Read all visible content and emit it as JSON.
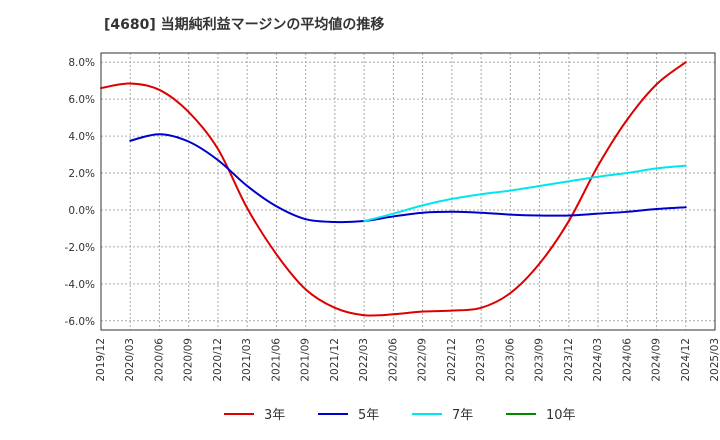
{
  "chart_data": {
    "type": "line",
    "title": "[4680]  当期純利益マージンの平均値の推移",
    "xlabel": "",
    "ylabel": "",
    "ylim": [
      -6.5,
      8.5
    ],
    "yticks": [
      8.0,
      6.0,
      4.0,
      2.0,
      0.0,
      -2.0,
      -4.0,
      -6.0
    ],
    "ytick_labels": [
      "8.0%",
      "6.0%",
      "4.0%",
      "2.0%",
      "0.0%",
      "-2.0%",
      "-4.0%",
      "-6.0%"
    ],
    "x_ticks": [
      "2019/12",
      "2020/03",
      "2020/06",
      "2020/09",
      "2020/12",
      "2021/03",
      "2021/06",
      "2021/09",
      "2021/12",
      "2022/03",
      "2022/06",
      "2022/09",
      "2022/12",
      "2023/03",
      "2023/06",
      "2023/09",
      "2023/12",
      "2024/03",
      "2024/06",
      "2024/09",
      "2024/12",
      "2025/03"
    ],
    "grid": true,
    "legend_position": "bottom",
    "series": [
      {
        "name": "3年",
        "color": "#dd0000",
        "x": [
          "2019/12",
          "2020/03",
          "2020/06",
          "2020/09",
          "2020/12",
          "2021/03",
          "2021/06",
          "2021/09",
          "2021/12",
          "2022/03",
          "2022/06",
          "2022/09",
          "2022/12",
          "2023/03",
          "2023/06",
          "2023/09",
          "2023/12",
          "2024/03",
          "2024/06",
          "2024/09",
          "2024/12"
        ],
        "values": [
          6.6,
          6.85,
          6.5,
          5.3,
          3.3,
          0.1,
          -2.4,
          -4.3,
          -5.3,
          -5.7,
          -5.65,
          -5.5,
          -5.45,
          -5.3,
          -4.5,
          -2.9,
          -0.6,
          2.4,
          4.9,
          6.8,
          8.0
        ]
      },
      {
        "name": "5年",
        "color": "#0000cc",
        "x": [
          "2020/03",
          "2020/06",
          "2020/09",
          "2020/12",
          "2021/03",
          "2021/06",
          "2021/09",
          "2021/12",
          "2022/03",
          "2022/06",
          "2022/09",
          "2022/12",
          "2023/03",
          "2023/06",
          "2023/09",
          "2023/12",
          "2024/03",
          "2024/06",
          "2024/09",
          "2024/12"
        ],
        "values": [
          3.75,
          4.1,
          3.7,
          2.7,
          1.3,
          0.2,
          -0.5,
          -0.65,
          -0.6,
          -0.35,
          -0.15,
          -0.1,
          -0.15,
          -0.25,
          -0.3,
          -0.3,
          -0.2,
          -0.1,
          0.05,
          0.15
        ]
      },
      {
        "name": "7年",
        "color": "#00e5ee",
        "x": [
          "2022/03",
          "2022/06",
          "2022/09",
          "2022/12",
          "2023/03",
          "2023/06",
          "2023/09",
          "2023/12",
          "2024/03",
          "2024/06",
          "2024/09",
          "2024/12"
        ],
        "values": [
          -0.6,
          -0.2,
          0.25,
          0.6,
          0.85,
          1.05,
          1.3,
          1.55,
          1.8,
          2.0,
          2.25,
          2.4
        ]
      },
      {
        "name": "10年",
        "color": "#008800",
        "x": [],
        "values": []
      }
    ]
  }
}
